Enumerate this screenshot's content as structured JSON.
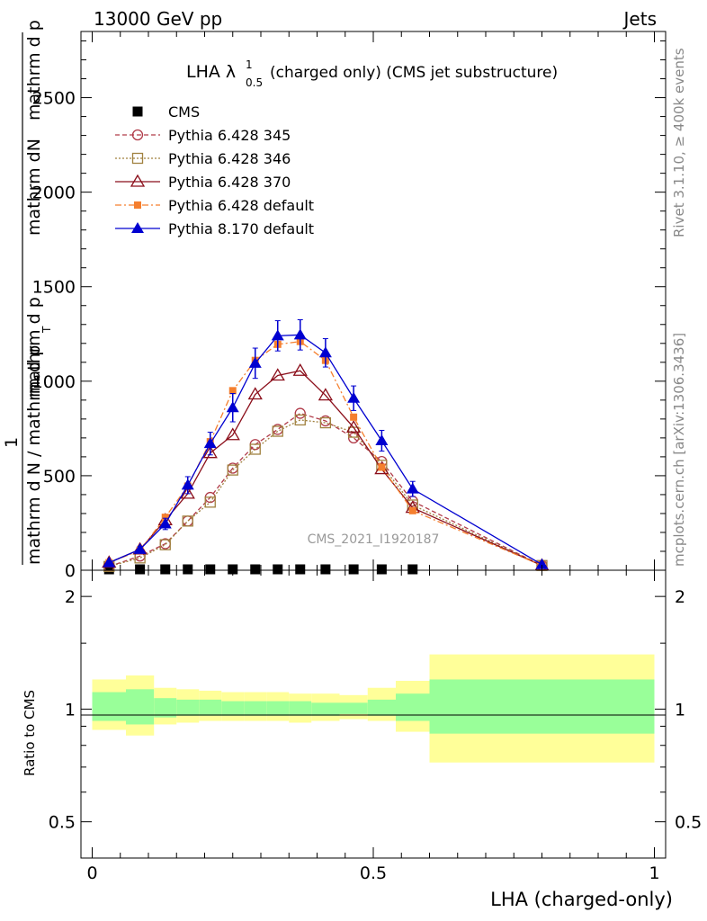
{
  "header": {
    "energy_label": "13000 GeV pp",
    "process_label": "Jets",
    "rivet_label": "Rivet 3.1.10, ≥ 400k events",
    "mcplots_label": "mcplots.cern.ch [arXiv:1306.3436]",
    "analysis_id": "CMS_2021_I1920187"
  },
  "colors": {
    "cms": "#000000",
    "p345": "#b03a48",
    "p346": "#a0813f",
    "p370": "#8b0e1a",
    "p6def": "#f57f2e",
    "p8def": "#0000d0",
    "band_outer": "#ffff99",
    "band_inner": "#99ff99"
  },
  "chart_data": [
    {
      "type": "line",
      "title_main": "LHA λ",
      "title_sup": "1",
      "title_sub": "0.5",
      "title_rest": "(charged only) (CMS jet substructure)",
      "ylabel_numerator": "mathrm dN",
      "ylabel_numerator_line2": "mathrm d p",
      "ylabel_denominator": "mathrm d N / mathrm d p",
      "ylabel_denominator_tail": "mathrm d p",
      "ylabel_prefix": "1",
      "ylabel_garbled_1": "T mathrm d p mathrm dlambda",
      "ylabel_garbled_2": "T",
      "ylim": [
        0,
        2850
      ],
      "xlim": [
        -0.02,
        1.02
      ],
      "yticks": [
        0,
        500,
        1000,
        1500,
        2000,
        2500
      ],
      "ytick_labels": [
        "0",
        "500",
        "1000",
        "1500",
        "2000",
        "2500"
      ],
      "legend_position": "top-left",
      "series": [
        {
          "name": "CMS",
          "key": "cms",
          "style": "square",
          "x": [
            0.03,
            0.085,
            0.13,
            0.17,
            0.21,
            0.25,
            0.29,
            0.33,
            0.37,
            0.415,
            0.465,
            0.515,
            0.57
          ],
          "y": [
            0,
            0,
            0,
            0,
            0,
            0,
            0,
            0,
            0,
            0,
            0,
            0,
            0
          ]
        },
        {
          "name": "Pythia 6.428 345",
          "key": "p345",
          "style": "circle-open-dashed",
          "x": [
            0.03,
            0.085,
            0.13,
            0.17,
            0.21,
            0.25,
            0.29,
            0.33,
            0.37,
            0.415,
            0.465,
            0.515,
            0.57,
            0.8
          ],
          "y": [
            20,
            75,
            140,
            260,
            385,
            540,
            665,
            745,
            830,
            790,
            700,
            575,
            365,
            25
          ]
        },
        {
          "name": "Pythia 6.428 346",
          "key": "p346",
          "style": "square-open-dotted",
          "x": [
            0.03,
            0.085,
            0.13,
            0.17,
            0.21,
            0.25,
            0.29,
            0.33,
            0.37,
            0.415,
            0.465,
            0.515,
            0.57,
            0.8
          ],
          "y": [
            20,
            65,
            135,
            260,
            360,
            530,
            640,
            735,
            795,
            780,
            730,
            555,
            345,
            25
          ]
        },
        {
          "name": "Pythia 6.428 370",
          "key": "p370",
          "style": "triangle-open-solid",
          "x": [
            0.03,
            0.085,
            0.13,
            0.17,
            0.21,
            0.25,
            0.29,
            0.33,
            0.37,
            0.415,
            0.465,
            0.515,
            0.57,
            0.8
          ],
          "y": [
            40,
            110,
            265,
            405,
            620,
            715,
            930,
            1030,
            1055,
            925,
            755,
            535,
            330,
            25
          ]
        },
        {
          "name": "Pythia 6.428 default",
          "key": "p6def",
          "style": "square-filled-dashdot",
          "x": [
            0.03,
            0.085,
            0.13,
            0.17,
            0.21,
            0.25,
            0.29,
            0.33,
            0.37,
            0.415,
            0.465,
            0.515,
            0.57,
            0.8
          ],
          "y": [
            40,
            105,
            280,
            445,
            680,
            950,
            1110,
            1195,
            1210,
            1110,
            810,
            545,
            315,
            25
          ]
        },
        {
          "name": "Pythia 8.170 default",
          "key": "p8def",
          "style": "triangle-filled-solid",
          "x": [
            0.03,
            0.085,
            0.13,
            0.17,
            0.21,
            0.25,
            0.29,
            0.33,
            0.37,
            0.415,
            0.465,
            0.515,
            0.57,
            0.8
          ],
          "y": [
            40,
            110,
            245,
            450,
            670,
            860,
            1095,
            1240,
            1245,
            1150,
            910,
            685,
            430,
            30
          ],
          "yerr": [
            10,
            15,
            30,
            45,
            60,
            75,
            80,
            80,
            80,
            75,
            65,
            55,
            40,
            10
          ]
        }
      ]
    },
    {
      "type": "area",
      "ylabel": "Ratio to CMS",
      "ylim": [
        0.4,
        2.35
      ],
      "xlim": [
        -0.02,
        1.02
      ],
      "log_scale_y": true,
      "yticks": [
        0.5,
        1,
        2
      ],
      "ytick_labels": [
        "0.5",
        "1",
        "2"
      ],
      "xticks": [
        0,
        0.5,
        1
      ],
      "xtick_labels": [
        "0",
        "0.5",
        "1"
      ],
      "xlabel": "LHA (charged-only)",
      "bins": [
        {
          "x0": 0.0,
          "x1": 0.06,
          "outer": [
            0.88,
            1.2
          ],
          "inner": [
            0.93,
            1.11
          ]
        },
        {
          "x0": 0.06,
          "x1": 0.11,
          "outer": [
            0.85,
            1.23
          ],
          "inner": [
            0.91,
            1.13
          ]
        },
        {
          "x0": 0.11,
          "x1": 0.15,
          "outer": [
            0.91,
            1.14
          ],
          "inner": [
            0.95,
            1.07
          ]
        },
        {
          "x0": 0.15,
          "x1": 0.19,
          "outer": [
            0.92,
            1.13
          ],
          "inner": [
            0.96,
            1.06
          ]
        },
        {
          "x0": 0.19,
          "x1": 0.23,
          "outer": [
            0.93,
            1.12
          ],
          "inner": [
            0.96,
            1.06
          ]
        },
        {
          "x0": 0.23,
          "x1": 0.27,
          "outer": [
            0.93,
            1.11
          ],
          "inner": [
            0.96,
            1.05
          ]
        },
        {
          "x0": 0.27,
          "x1": 0.31,
          "outer": [
            0.93,
            1.11
          ],
          "inner": [
            0.96,
            1.05
          ]
        },
        {
          "x0": 0.31,
          "x1": 0.35,
          "outer": [
            0.93,
            1.11
          ],
          "inner": [
            0.96,
            1.05
          ]
        },
        {
          "x0": 0.35,
          "x1": 0.39,
          "outer": [
            0.92,
            1.1
          ],
          "inner": [
            0.96,
            1.05
          ]
        },
        {
          "x0": 0.39,
          "x1": 0.44,
          "outer": [
            0.93,
            1.1
          ],
          "inner": [
            0.96,
            1.04
          ]
        },
        {
          "x0": 0.44,
          "x1": 0.49,
          "outer": [
            0.94,
            1.09
          ],
          "inner": [
            0.97,
            1.04
          ]
        },
        {
          "x0": 0.49,
          "x1": 0.54,
          "outer": [
            0.93,
            1.14
          ],
          "inner": [
            0.96,
            1.06
          ]
        },
        {
          "x0": 0.54,
          "x1": 0.6,
          "outer": [
            0.87,
            1.19
          ],
          "inner": [
            0.93,
            1.1
          ]
        },
        {
          "x0": 0.6,
          "x1": 1.0,
          "outer": [
            0.72,
            1.4
          ],
          "inner": [
            0.86,
            1.2
          ]
        }
      ]
    }
  ]
}
